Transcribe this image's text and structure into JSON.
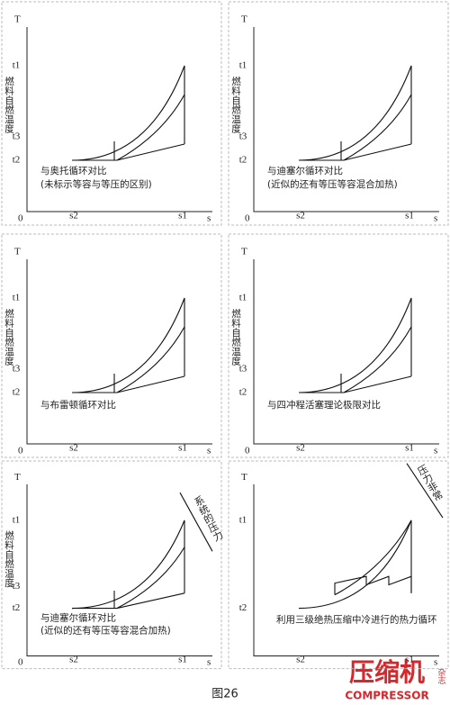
{
  "panels": [
    {
      "axis_y": "T",
      "axis_x": "s",
      "origin": "0",
      "ticks_y": [
        "t1",
        "t3",
        "t2"
      ],
      "ylabel": "燃料自燃温度",
      "ticks_x": [
        "s2",
        "s1"
      ],
      "caption": [
        "与奥托循环对比",
        "(未标示等容与等压的区别)"
      ]
    },
    {
      "axis_y": "T",
      "axis_x": "s",
      "origin": "0",
      "ticks_y": [
        "t1",
        "t3",
        "t2"
      ],
      "ylabel": "燃料自燃温度",
      "ticks_x": [
        "s2",
        "s1"
      ],
      "caption": [
        "与迪塞尔循环对比",
        "(近似的还有等压等容混合加热)"
      ]
    },
    {
      "axis_y": "T",
      "axis_x": "s",
      "origin": "0",
      "ticks_y": [
        "t1",
        "t3",
        "t2"
      ],
      "ylabel": "燃料自燃温度",
      "ticks_x": [
        "s2",
        "s1"
      ],
      "caption": [
        "与布雷顿循环对比"
      ]
    },
    {
      "axis_y": "T",
      "axis_x": "s",
      "origin": "0",
      "ticks_y": [
        "t1",
        "t3",
        "t2"
      ],
      "ylabel": "燃料自燃温度",
      "ticks_x": [
        "s2",
        "s1"
      ],
      "caption": [
        "与四冲程活塞理论极限对比"
      ]
    },
    {
      "axis_y": "T",
      "axis_x": "s",
      "origin": "0",
      "ticks_y": [
        "t1",
        "t3",
        "t2"
      ],
      "ylabel": "燃料自燃温度",
      "ticks_x": [
        "s2",
        "s1"
      ],
      "caption": [
        "与迪塞尔循环对比",
        "(近似的还有等压等容混合加热)"
      ],
      "annotation": "系统的压力"
    },
    {
      "axis_y": "T",
      "axis_x": "s",
      "ticks_y": [
        "t1",
        "t2"
      ],
      "ticks_x": [
        "s2",
        "s1"
      ],
      "caption": [
        "利用三级绝热压缩中冷进行的热力循环"
      ],
      "annotation": "压力非常"
    }
  ],
  "watermark": {
    "brand": "压缩机",
    "side": "杂志",
    "en": "COMPRESSOR"
  },
  "figure_caption": "图26"
}
